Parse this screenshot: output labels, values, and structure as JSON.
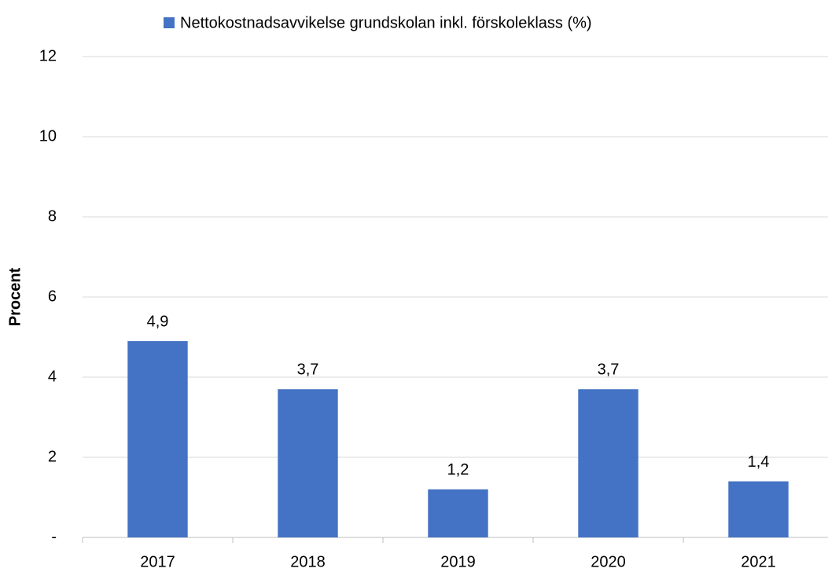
{
  "chart_data": {
    "type": "bar",
    "legend_label": "Nettokostnadsavvikelse grundskolan inkl. förskoleklass (%)",
    "ylabel": "Procent",
    "categories": [
      "2017",
      "2018",
      "2019",
      "2020",
      "2021"
    ],
    "values": [
      4.9,
      3.7,
      1.2,
      3.7,
      1.4
    ],
    "value_labels": [
      "4,9",
      "3,7",
      "1,2",
      "3,7",
      "1,4"
    ],
    "color": "#4472c4",
    "ylim": [
      0,
      12
    ],
    "yticks": [
      {
        "value": 0,
        "label": "-"
      },
      2,
      4,
      6,
      8,
      10,
      12
    ],
    "grid": true,
    "legend": "top"
  }
}
